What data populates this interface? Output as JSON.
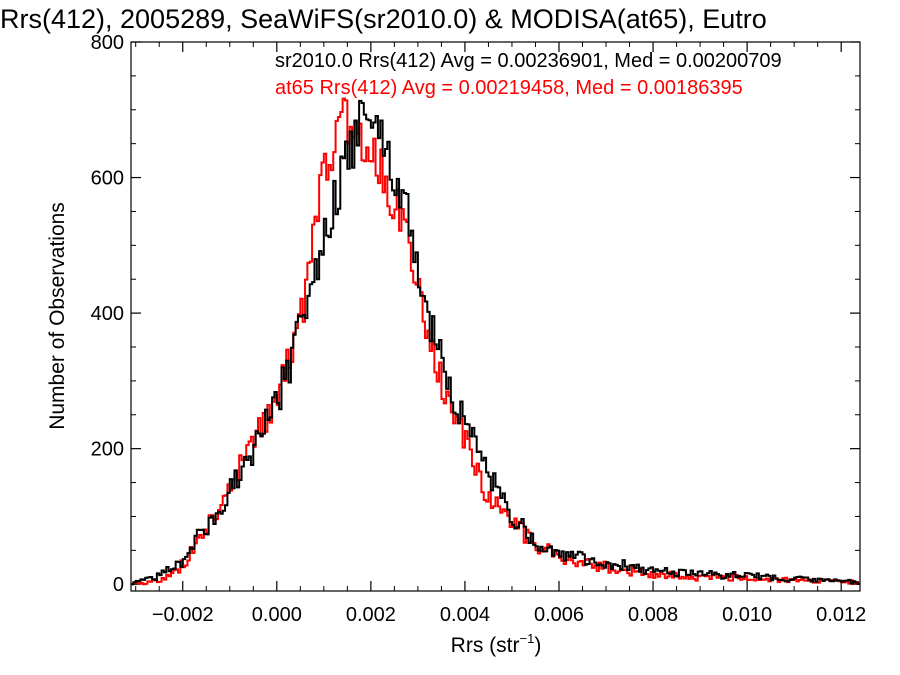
{
  "chart_data": {
    "type": "histogram",
    "title": "Rrs(412), 2005289, SeaWiFS(sr2010.0) & MODISA(at65), Eutro",
    "xlabel": "Rrs (str",
    "xlabel_sup": "−1",
    "xlabel_close": ")",
    "ylabel": "Number of Observations",
    "xlim": [
      -0.0031,
      0.0124
    ],
    "ylim": [
      -10,
      800
    ],
    "x_ticks": [
      -0.002,
      0.0,
      0.002,
      0.004,
      0.006,
      0.008,
      0.01,
      0.012
    ],
    "x_tick_labels": [
      "−0.002",
      "0.000",
      "0.002",
      "0.004",
      "0.006",
      "0.008",
      "0.010",
      "0.012"
    ],
    "y_ticks": [
      0,
      200,
      400,
      600,
      800
    ],
    "y_tick_labels": [
      "0",
      "200",
      "400",
      "600",
      "800"
    ],
    "grid": false,
    "series": [
      {
        "color": "#000000",
        "legend_text": "sr2010.0 Rrs(412) Avg = 0.00236901, Med = 0.00200709",
        "peak_x": 0.0019,
        "peak_y": 700,
        "points": [
          [
            -0.0031,
            0
          ],
          [
            -0.0025,
            12
          ],
          [
            -0.002,
            35
          ],
          [
            -0.0015,
            85
          ],
          [
            -0.001,
            135
          ],
          [
            -0.0005,
            200
          ],
          [
            0.0,
            270
          ],
          [
            0.0003,
            330
          ],
          [
            0.0006,
            400
          ],
          [
            0.0009,
            465
          ],
          [
            0.0012,
            560
          ],
          [
            0.0015,
            630
          ],
          [
            0.0017,
            670
          ],
          [
            0.0019,
            700
          ],
          [
            0.0021,
            690
          ],
          [
            0.0023,
            670
          ],
          [
            0.0025,
            600
          ],
          [
            0.0028,
            540
          ],
          [
            0.003,
            450
          ],
          [
            0.0033,
            380
          ],
          [
            0.0036,
            310
          ],
          [
            0.004,
            240
          ],
          [
            0.0045,
            160
          ],
          [
            0.005,
            100
          ],
          [
            0.0055,
            65
          ],
          [
            0.006,
            45
          ],
          [
            0.007,
            32
          ],
          [
            0.008,
            20
          ],
          [
            0.009,
            15
          ],
          [
            0.01,
            12
          ],
          [
            0.011,
            8
          ],
          [
            0.0124,
            3
          ]
        ]
      },
      {
        "color": "#ff0000",
        "legend_text": "at65 Rrs(412) Avg = 0.00219458, Med = 0.00186395",
        "peak_x": 0.0017,
        "peak_y": 690,
        "points": [
          [
            -0.0031,
            0
          ],
          [
            -0.0025,
            5
          ],
          [
            -0.002,
            28
          ],
          [
            -0.0015,
            80
          ],
          [
            -0.001,
            150
          ],
          [
            -0.0005,
            210
          ],
          [
            0.0,
            280
          ],
          [
            0.0003,
            350
          ],
          [
            0.0006,
            420
          ],
          [
            0.0009,
            560
          ],
          [
            0.0011,
            640
          ],
          [
            0.0013,
            670
          ],
          [
            0.0015,
            680
          ],
          [
            0.0017,
            690
          ],
          [
            0.0019,
            640
          ],
          [
            0.0021,
            620
          ],
          [
            0.0023,
            600
          ],
          [
            0.0025,
            570
          ],
          [
            0.0028,
            500
          ],
          [
            0.003,
            450
          ],
          [
            0.0033,
            350
          ],
          [
            0.0036,
            280
          ],
          [
            0.004,
            210
          ],
          [
            0.0045,
            130
          ],
          [
            0.005,
            90
          ],
          [
            0.0055,
            60
          ],
          [
            0.006,
            40
          ],
          [
            0.007,
            25
          ],
          [
            0.008,
            15
          ],
          [
            0.009,
            10
          ],
          [
            0.01,
            10
          ],
          [
            0.011,
            5
          ],
          [
            0.0124,
            3
          ]
        ]
      }
    ]
  }
}
